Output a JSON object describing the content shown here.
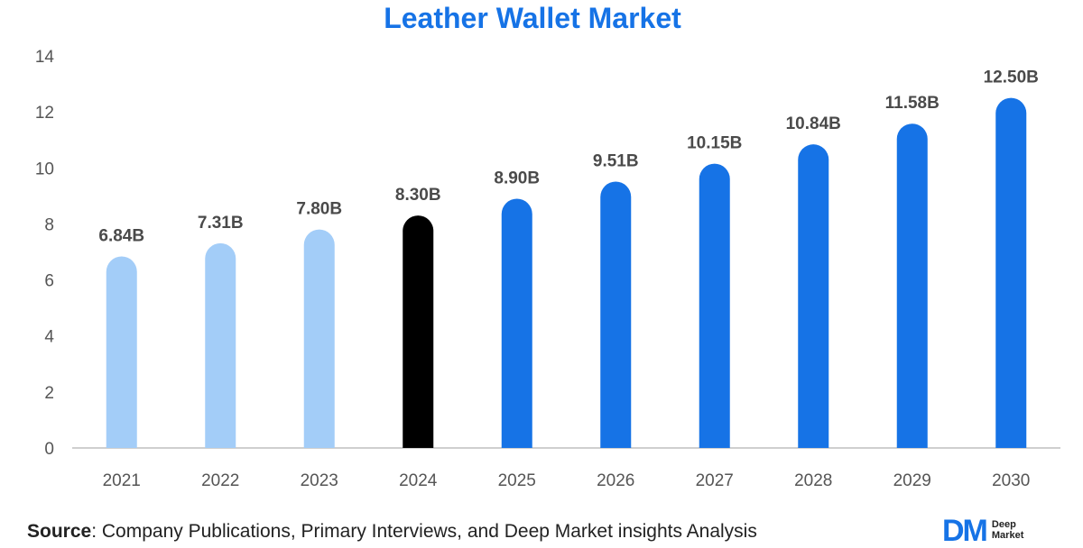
{
  "chart_data": {
    "type": "bar",
    "title": "Leather Wallet Market",
    "categories": [
      "2021",
      "2022",
      "2023",
      "2024",
      "2025",
      "2026",
      "2027",
      "2028",
      "2029",
      "2030"
    ],
    "values": [
      6.84,
      7.31,
      7.8,
      8.3,
      8.9,
      9.51,
      10.15,
      10.84,
      11.58,
      12.5
    ],
    "data_labels": [
      "6.84B",
      "7.31B",
      "7.80B",
      "8.30B",
      "8.90B",
      "9.51B",
      "10.15B",
      "10.84B",
      "11.58B",
      "12.50B"
    ],
    "bar_colors": [
      "#a3cdf8",
      "#a3cdf8",
      "#a3cdf8",
      "#000000",
      "#1673e6",
      "#1673e6",
      "#1673e6",
      "#1673e6",
      "#1673e6",
      "#1673e6"
    ],
    "ylim": [
      0,
      14
    ],
    "yticks": [
      0,
      2,
      4,
      6,
      8,
      10,
      12,
      14
    ],
    "xlabel": "",
    "ylabel": "",
    "grid": false,
    "legend": "none"
  },
  "source": {
    "key": "Source",
    "text": ": Company Publications, Primary Interviews, and Deep Market insights Analysis"
  },
  "logo": {
    "mark": "DM",
    "text": "Deep\nMarket"
  },
  "colors": {
    "title": "#1673e6",
    "axis": "#bfbfbf"
  }
}
